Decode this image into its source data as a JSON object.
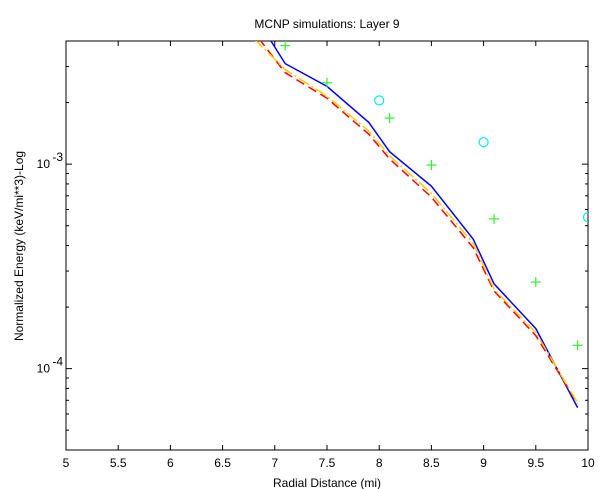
{
  "chart_data": {
    "type": "line",
    "title": "MCNP simulations: Layer 9",
    "xlabel": "Radial Distance (mi)",
    "ylabel": "Normalized Energy (keV/mi**3)-Log",
    "xlim": [
      5,
      10
    ],
    "ylim": [
      4e-05,
      0.004
    ],
    "yscale": "log",
    "x_ticks": [
      5,
      5.5,
      6,
      6.5,
      7,
      7.5,
      8,
      8.5,
      9,
      9.5,
      10
    ],
    "x_tick_labels": [
      "5",
      "5.5",
      "6",
      "6.5",
      "7",
      "7.5",
      "8",
      "8.5",
      "9",
      "9.5",
      "10"
    ],
    "y_ticks": [
      0.0001,
      0.001
    ],
    "y_tick_labels": [
      {
        "base": "10",
        "exp": "-4"
      },
      {
        "base": "10",
        "exp": "-3"
      }
    ],
    "grid": false,
    "series": [
      {
        "style": "solid",
        "color": "#0000ff",
        "x": [
          6.95,
          7.1,
          7.5,
          7.9,
          8.1,
          8.5,
          8.9,
          9.1,
          9.5,
          9.9
        ],
        "y": [
          0.0041,
          0.0031,
          0.0024,
          0.0016,
          0.00115,
          0.00078,
          0.00043,
          0.00026,
          0.000157,
          6.45e-05
        ]
      },
      {
        "style": "dashed",
        "color": "#ff0000",
        "x": [
          6.85,
          7.1,
          7.5,
          7.9,
          8.1,
          8.5,
          8.9,
          9.1,
          9.5,
          9.9
        ],
        "y": [
          0.0041,
          0.0028,
          0.0021,
          0.0014,
          0.00106,
          0.00069,
          0.00039,
          0.00024,
          0.000145,
          6.75e-05
        ]
      },
      {
        "style": "dash-dot",
        "color": "#ffcc00",
        "x": [
          6.8,
          7.1,
          7.5,
          7.9,
          8.1,
          8.5,
          8.9,
          9.1,
          9.5,
          9.9
        ],
        "y": [
          0.0041,
          0.0029,
          0.00215,
          0.00145,
          0.0011,
          0.00072,
          0.00041,
          0.000245,
          0.00015,
          6.8e-05
        ]
      },
      {
        "style": "marker-plus",
        "color": "#33ee33",
        "x": [
          7.1,
          7.5,
          8.1,
          8.5,
          9.1,
          9.5,
          9.9
        ],
        "y": [
          0.0038,
          0.0025,
          0.00168,
          0.00099,
          0.00054,
          0.000265,
          0.00013
        ]
      },
      {
        "style": "marker-circle",
        "color": "#00eeee",
        "x": [
          8.0,
          9.0,
          10.0
        ],
        "y": [
          0.00205,
          0.00128,
          0.00055
        ]
      }
    ]
  }
}
